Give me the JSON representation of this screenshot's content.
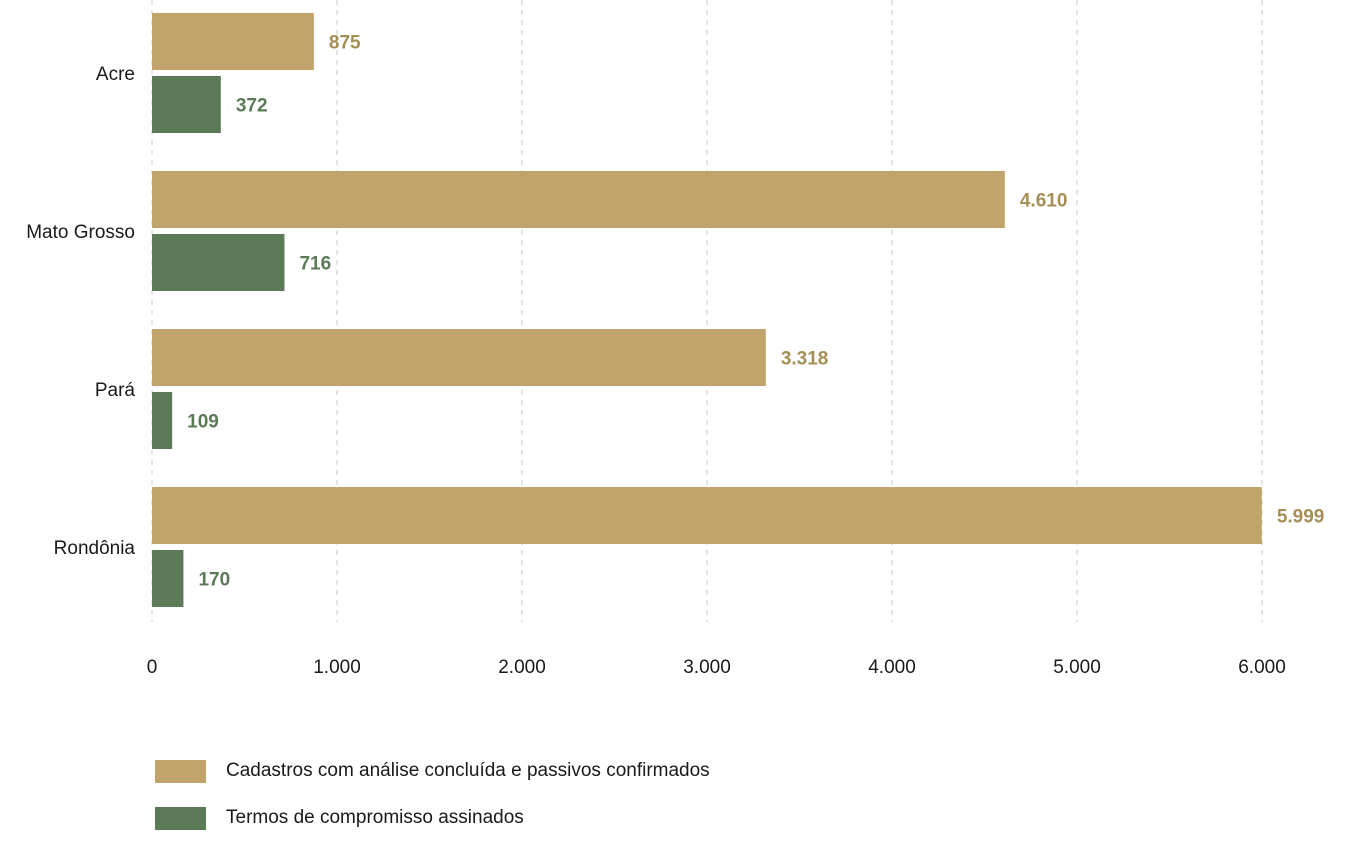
{
  "chart_data": {
    "type": "bar",
    "orientation": "horizontal",
    "categories": [
      "Acre",
      "Mato Grosso",
      "Pará",
      "Rondônia"
    ],
    "series": [
      {
        "name": "Cadastros com análise concluída e passivos confirmados",
        "color": "#c1a46b",
        "label_color": "#a48f57",
        "values": [
          875,
          4610,
          3318,
          5999
        ],
        "labels": [
          "875",
          "4.610",
          "3.318",
          "5.999"
        ]
      },
      {
        "name": "Termos de compromisso assinados",
        "color": "#5c7a58",
        "label_color": "#5c7a58",
        "values": [
          372,
          716,
          109,
          170
        ],
        "labels": [
          "372",
          "716",
          "109",
          "170"
        ]
      }
    ],
    "xlim": [
      0,
      6000
    ],
    "xticks": [
      0,
      1000,
      2000,
      3000,
      4000,
      5000,
      6000
    ],
    "xtick_labels": [
      "0",
      "1.000",
      "2.000",
      "3.000",
      "4.000",
      "5.000",
      "6.000"
    ],
    "grid": "vertical-dashed",
    "legend_position": "bottom-left"
  },
  "legend": {
    "items": [
      {
        "label": "Cadastros com análise concluída e passivos confirmados",
        "color": "#c1a46b"
      },
      {
        "label": "Termos de compromisso assinados",
        "color": "#5c7a58"
      }
    ]
  }
}
